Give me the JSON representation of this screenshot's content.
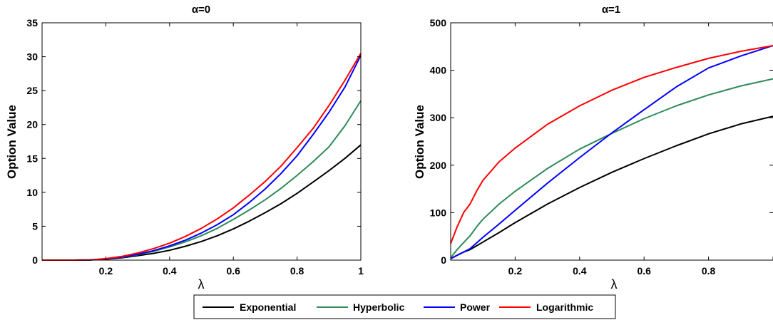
{
  "legend": [
    {
      "label": "Exponential",
      "color": "#000000"
    },
    {
      "label": "Hyperbolic",
      "color": "#2e8b57"
    },
    {
      "label": "Power",
      "color": "#0000ff"
    },
    {
      "label": "Logarithmic",
      "color": "#ff0000"
    }
  ],
  "chart_data": [
    {
      "type": "line",
      "title": "α=0",
      "xlabel": "λ",
      "ylabel": "Option Value",
      "xlim": [
        0,
        1
      ],
      "ylim": [
        0,
        35
      ],
      "xticks": [
        0.2,
        0.4,
        0.6,
        0.8,
        1
      ],
      "xtick_labels": [
        "0.2",
        "0.4",
        "0.6",
        "0.8",
        "1"
      ],
      "yticks": [
        0,
        5,
        10,
        15,
        20,
        25,
        30,
        35
      ],
      "ytick_labels": [
        "0",
        "5",
        "10",
        "15",
        "20",
        "25",
        "30",
        "35"
      ],
      "grid": false,
      "series": [
        {
          "name": "Exponential",
          "color": "#000000",
          "x": [
            0,
            0.1,
            0.15,
            0.2,
            0.25,
            0.3,
            0.35,
            0.4,
            0.45,
            0.5,
            0.55,
            0.6,
            0.65,
            0.7,
            0.75,
            0.8,
            0.85,
            0.9,
            0.95,
            1.0
          ],
          "y": [
            0,
            0,
            0.02,
            0.15,
            0.35,
            0.65,
            1.0,
            1.45,
            2.05,
            2.75,
            3.6,
            4.6,
            5.75,
            7.0,
            8.35,
            9.85,
            11.5,
            13.2,
            15.0,
            17.0
          ]
        },
        {
          "name": "Hyperbolic",
          "color": "#2e8b57",
          "x": [
            0,
            0.1,
            0.15,
            0.2,
            0.25,
            0.3,
            0.35,
            0.4,
            0.45,
            0.5,
            0.55,
            0.6,
            0.65,
            0.7,
            0.75,
            0.8,
            0.85,
            0.9,
            0.95,
            1.0
          ],
          "y": [
            0,
            0,
            0.02,
            0.18,
            0.42,
            0.8,
            1.3,
            1.95,
            2.7,
            3.6,
            4.7,
            6.0,
            7.4,
            8.9,
            10.6,
            12.5,
            14.5,
            16.7,
            19.8,
            23.5
          ]
        },
        {
          "name": "Power",
          "color": "#0000ff",
          "x": [
            0,
            0.1,
            0.15,
            0.2,
            0.25,
            0.3,
            0.35,
            0.4,
            0.45,
            0.5,
            0.55,
            0.6,
            0.65,
            0.7,
            0.75,
            0.8,
            0.85,
            0.9,
            0.95,
            1.0
          ],
          "y": [
            0,
            0,
            0.02,
            0.18,
            0.45,
            0.85,
            1.4,
            2.1,
            2.95,
            4.0,
            5.25,
            6.7,
            8.5,
            10.5,
            12.8,
            15.4,
            18.5,
            21.8,
            25.5,
            30.2
          ]
        },
        {
          "name": "Logarithmic",
          "color": "#ff0000",
          "x": [
            0,
            0.1,
            0.15,
            0.2,
            0.25,
            0.3,
            0.35,
            0.4,
            0.45,
            0.5,
            0.55,
            0.6,
            0.65,
            0.7,
            0.75,
            0.8,
            0.85,
            0.9,
            0.95,
            1.0
          ],
          "y": [
            0,
            0,
            0.03,
            0.22,
            0.55,
            1.05,
            1.7,
            2.5,
            3.5,
            4.7,
            6.1,
            7.7,
            9.6,
            11.6,
            13.9,
            16.6,
            19.4,
            22.8,
            26.5,
            30.5
          ]
        }
      ]
    },
    {
      "type": "line",
      "title": "α=1",
      "xlabel": "λ",
      "ylabel": "Option Value",
      "xlim": [
        0,
        1
      ],
      "ylim": [
        0,
        500
      ],
      "xticks": [
        0.2,
        0.4,
        0.6,
        0.8,
        1
      ],
      "xtick_labels": [
        "0.2",
        "0.4",
        "0.6",
        "0.8",
        ""
      ],
      "yticks": [
        0,
        100,
        200,
        300,
        400,
        500
      ],
      "ytick_labels": [
        "0",
        "100",
        "200",
        "300",
        "400",
        "500"
      ],
      "grid": false,
      "series": [
        {
          "name": "Exponential",
          "color": "#000000",
          "x": [
            0,
            0.02,
            0.04,
            0.06,
            0.08,
            0.1,
            0.15,
            0.2,
            0.3,
            0.4,
            0.5,
            0.6,
            0.7,
            0.8,
            0.9,
            1.0
          ],
          "y": [
            3,
            10,
            17,
            22,
            30,
            38,
            58,
            79,
            118,
            153,
            185,
            214,
            241,
            266,
            287,
            303
          ]
        },
        {
          "name": "Hyperbolic",
          "color": "#2e8b57",
          "x": [
            0,
            0.02,
            0.04,
            0.06,
            0.08,
            0.1,
            0.15,
            0.2,
            0.3,
            0.4,
            0.5,
            0.6,
            0.7,
            0.8,
            0.9,
            1.0
          ],
          "y": [
            5,
            22,
            37,
            51,
            70,
            86,
            118,
            145,
            193,
            234,
            267,
            298,
            325,
            348,
            367,
            382
          ]
        },
        {
          "name": "Power",
          "color": "#0000ff",
          "x": [
            0,
            0.02,
            0.04,
            0.06,
            0.08,
            0.1,
            0.15,
            0.2,
            0.3,
            0.4,
            0.5,
            0.6,
            0.7,
            0.8,
            0.9,
            1.0
          ],
          "y": [
            3,
            10,
            17,
            24,
            36,
            48,
            76,
            105,
            162,
            216,
            268,
            317,
            365,
            405,
            430,
            452
          ]
        },
        {
          "name": "Logarithmic",
          "color": "#ff0000",
          "x": [
            0,
            0.02,
            0.04,
            0.06,
            0.08,
            0.1,
            0.15,
            0.2,
            0.3,
            0.4,
            0.5,
            0.6,
            0.7,
            0.8,
            0.9,
            1.0
          ],
          "y": [
            35,
            70,
            100,
            118,
            145,
            168,
            207,
            236,
            286,
            325,
            358,
            385,
            406,
            425,
            440,
            452
          ]
        }
      ]
    }
  ]
}
